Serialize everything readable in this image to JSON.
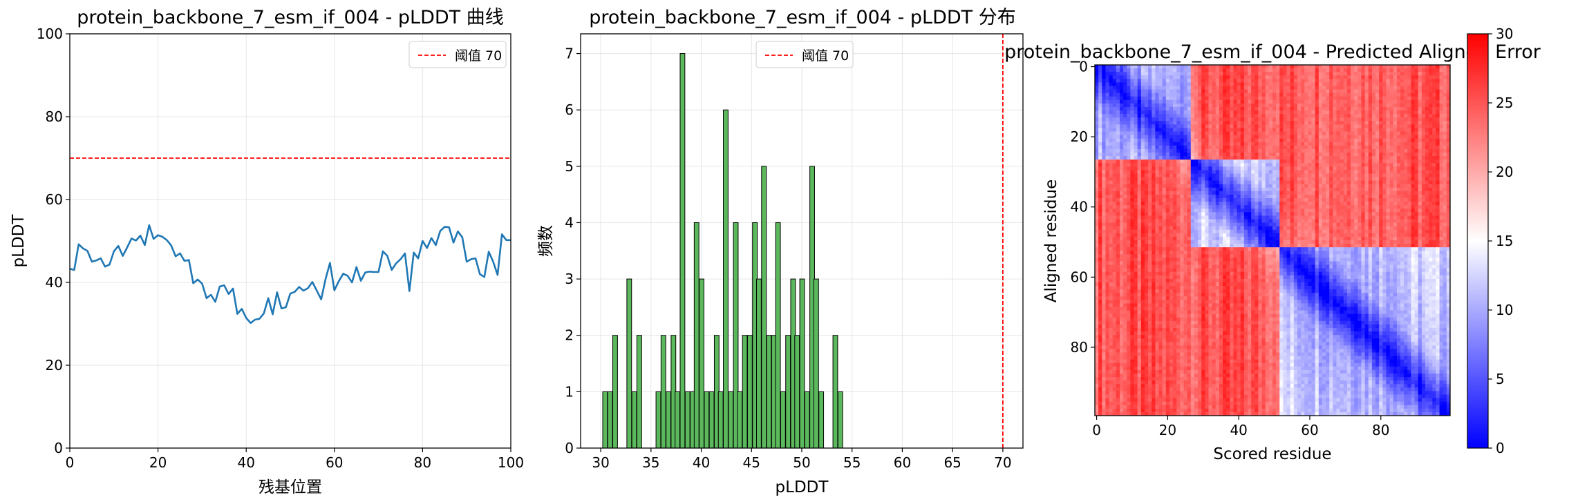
{
  "chart_data": [
    {
      "type": "line",
      "title": "protein_backbone_7_esm_if_004 - pLDDT 曲线",
      "xlabel": "残基位置",
      "ylabel": "pLDDT",
      "xlim": [
        0,
        100
      ],
      "ylim": [
        0,
        100
      ],
      "xticks": [
        0,
        20,
        40,
        60,
        80,
        100
      ],
      "yticks": [
        0,
        20,
        40,
        60,
        80,
        100
      ],
      "grid": true,
      "legend": {
        "placement": "top-right",
        "entries": [
          "阈值 70"
        ]
      },
      "threshold": {
        "value": 70,
        "label": "阈值 70",
        "color": "#ff0000",
        "style": "dashed"
      },
      "series": [
        {
          "color": "#1f77b4",
          "x": [
            0,
            1,
            2,
            3,
            4,
            5,
            6,
            7,
            8,
            9,
            10,
            11,
            12,
            13,
            14,
            15,
            16,
            17,
            18,
            19,
            20,
            21,
            22,
            23,
            24,
            25,
            26,
            27,
            28,
            29,
            30,
            31,
            32,
            33,
            34,
            35,
            36,
            37,
            38,
            39,
            40,
            41,
            42,
            43,
            44,
            45,
            46,
            47,
            48,
            49,
            50,
            51,
            52,
            53,
            54,
            55,
            56,
            57,
            58,
            59,
            60,
            61,
            62,
            63,
            64,
            65,
            66,
            67,
            68,
            69,
            70,
            71,
            72,
            73,
            74,
            75,
            76,
            77,
            78,
            79,
            80,
            81,
            82,
            83,
            84,
            85,
            86,
            87,
            88,
            89,
            90,
            91,
            92,
            93,
            94,
            95,
            96,
            97,
            98,
            99,
            100
          ],
          "values": [
            43.3,
            43.0,
            49.2,
            48.2,
            47.6,
            45.0,
            45.3,
            45.8,
            43.8,
            44.3,
            47.5,
            48.8,
            46.4,
            48.4,
            50.6,
            50.1,
            51.3,
            49.0,
            53.8,
            50.5,
            51.4,
            51.0,
            50.2,
            48.9,
            46.3,
            47.0,
            45.2,
            45.4,
            39.8,
            40.7,
            39.7,
            36.2,
            37.0,
            35.3,
            39.0,
            39.3,
            37.2,
            38.5,
            32.4,
            33.6,
            31.4,
            30.2,
            31.0,
            31.2,
            32.5,
            36.2,
            32.3,
            37.6,
            33.7,
            34.0,
            37.3,
            37.7,
            38.9,
            38.0,
            38.6,
            40.1,
            38.0,
            35.9,
            40.8,
            44.7,
            38.1,
            40.3,
            42.1,
            41.6,
            40.0,
            43.7,
            40.4,
            42.4,
            42.6,
            42.5,
            42.5,
            47.5,
            46.4,
            43.0,
            44.6,
            45.6,
            47.0,
            37.9,
            47.2,
            45.8,
            50.0,
            48.3,
            50.7,
            49.0,
            52.4,
            53.4,
            53.3,
            49.6,
            52.3,
            50.9,
            45.0,
            45.6,
            45.8,
            42.0,
            41.3,
            47.4,
            45.0,
            41.8,
            51.6,
            50.2,
            50.2
          ]
        }
      ]
    },
    {
      "type": "bar",
      "title": "protein_backbone_7_esm_if_004 - pLDDT 分布",
      "xlabel": "pLDDT",
      "ylabel": "频数",
      "xlim": [
        28,
        72
      ],
      "ylim": [
        0,
        7.35
      ],
      "xticks": [
        30,
        35,
        40,
        45,
        50,
        55,
        60,
        65,
        70
      ],
      "yticks": [
        0,
        1,
        2,
        3,
        4,
        5,
        6,
        7
      ],
      "grid": true,
      "legend": {
        "placement": "top-center",
        "entries": [
          "阈值 70"
        ]
      },
      "threshold": {
        "value": 70,
        "label": "阈值 70",
        "color": "#ff0000",
        "style": "dashed"
      },
      "bar_color": "#5cb85c",
      "bin_width": 0.47,
      "bins": [
        [
          30.2,
          1
        ],
        [
          30.7,
          1
        ],
        [
          31.2,
          2
        ],
        [
          32.6,
          3
        ],
        [
          33.1,
          1
        ],
        [
          33.6,
          2
        ],
        [
          35.5,
          1
        ],
        [
          36.0,
          2
        ],
        [
          36.5,
          1
        ],
        [
          37.0,
          2
        ],
        [
          37.4,
          1
        ],
        [
          37.9,
          7
        ],
        [
          38.4,
          1
        ],
        [
          38.9,
          1
        ],
        [
          39.3,
          4
        ],
        [
          39.8,
          3
        ],
        [
          40.3,
          1
        ],
        [
          40.8,
          1
        ],
        [
          41.3,
          2
        ],
        [
          41.7,
          1
        ],
        [
          42.2,
          6
        ],
        [
          42.7,
          1
        ],
        [
          43.2,
          4
        ],
        [
          43.6,
          1
        ],
        [
          44.1,
          2
        ],
        [
          44.6,
          2
        ],
        [
          45.1,
          4
        ],
        [
          45.5,
          3
        ],
        [
          46.0,
          5
        ],
        [
          46.5,
          2
        ],
        [
          47.0,
          2
        ],
        [
          47.4,
          4
        ],
        [
          47.9,
          1
        ],
        [
          48.4,
          2
        ],
        [
          48.9,
          3
        ],
        [
          49.3,
          2
        ],
        [
          49.8,
          3
        ],
        [
          50.3,
          1
        ],
        [
          50.8,
          5
        ],
        [
          51.2,
          3
        ],
        [
          51.7,
          1
        ],
        [
          53.1,
          2
        ],
        [
          53.6,
          1
        ]
      ]
    },
    {
      "type": "heatmap",
      "title": "protein_backbone_7_esm_if_004 - Predicted Aligned Error",
      "xlabel": "Scored residue",
      "ylabel": "Aligned residue",
      "size": 100,
      "xticks": [
        0,
        20,
        40,
        60,
        80
      ],
      "yticks": [
        0,
        20,
        40,
        60,
        80
      ],
      "colormap": "bwr",
      "colorbar": {
        "min": 0,
        "max": 30,
        "ticks": [
          0,
          5,
          10,
          15,
          20,
          25,
          30
        ]
      },
      "domains": [
        {
          "start": 0,
          "end": 27,
          "intra_error": 9
        },
        {
          "start": 27,
          "end": 52,
          "intra_error": 11
        },
        {
          "start": 52,
          "end": 100,
          "intra_error": 10
        }
      ],
      "inter_domain_error": 25,
      "diagonal_error": 1
    }
  ]
}
